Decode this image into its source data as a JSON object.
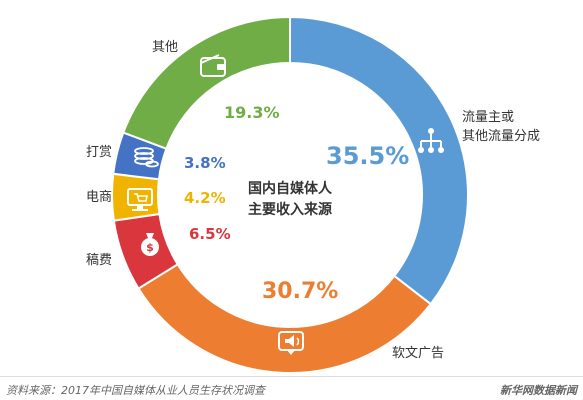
{
  "chart_data": {
    "type": "pie",
    "center_label": [
      "国内自媒体人",
      "主要收入来源"
    ],
    "slices": [
      {
        "category": "流量主或其他流量分成",
        "label_lines": [
          "流量主或",
          "其他流量分成"
        ],
        "value": 35.5,
        "value_label": "35.5%",
        "color": "#5b9bd5",
        "icon": "network-icon"
      },
      {
        "category": "软文广告",
        "label_lines": [
          "软文广告"
        ],
        "value": 30.7,
        "value_label": "30.7%",
        "color": "#ed7d31",
        "icon": "speaker-icon"
      },
      {
        "category": "稿费",
        "label_lines": [
          "稿费"
        ],
        "value": 6.5,
        "value_label": "6.5%",
        "color": "#d9363e",
        "icon": "money-bag-icon"
      },
      {
        "category": "电商",
        "label_lines": [
          "电商"
        ],
        "value": 4.2,
        "value_label": "4.2%",
        "color": "#f0b400",
        "icon": "cart-icon"
      },
      {
        "category": "打赏",
        "label_lines": [
          "打赏"
        ],
        "value": 3.8,
        "value_label": "3.8%",
        "color": "#4472c4",
        "icon": "coins-icon"
      },
      {
        "category": "其他",
        "label_lines": [
          "其他"
        ],
        "value": 19.3,
        "value_label": "19.3%",
        "color": "#70ad47",
        "icon": "wallet-icon"
      }
    ]
  },
  "footer": {
    "source": "资料来源：2017年中国自媒体从业人员生存状况调查",
    "brand": "新华网数据新闻"
  }
}
